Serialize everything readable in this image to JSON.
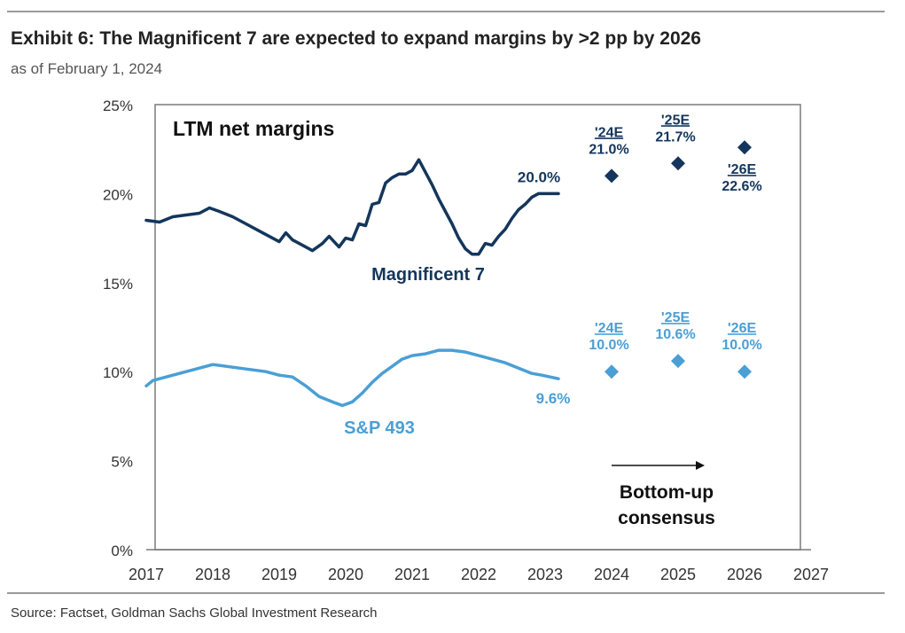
{
  "title": "Exhibit 6: The Magnificent 7 are expected to expand margins by >2 pp by 2026",
  "subtitle": "as of February 1, 2024",
  "source": "Source: Factset, Goldman Sachs Global Investment Research",
  "colors": {
    "mag7": "#14365c",
    "sp493": "#4a9fd5",
    "frame": "#7a7a7a",
    "text": "#333333"
  },
  "chart_data": {
    "type": "line",
    "title": "LTM net margins",
    "xlim": [
      2017,
      2027
    ],
    "ylim": [
      0,
      25
    ],
    "x_ticks": [
      "2017",
      "2018",
      "2019",
      "2020",
      "2021",
      "2022",
      "2023",
      "2024",
      "2025",
      "2026",
      "2027"
    ],
    "y_ticks": [
      "0%",
      "5%",
      "10%",
      "15%",
      "20%",
      "25%"
    ],
    "grid": false,
    "series": [
      {
        "name": "Magnificent 7",
        "x": [
          2017.0,
          2017.2,
          2017.4,
          2017.6,
          2017.8,
          2017.95,
          2018.1,
          2018.3,
          2018.5,
          2018.7,
          2018.9,
          2019.0,
          2019.1,
          2019.2,
          2019.35,
          2019.5,
          2019.65,
          2019.75,
          2019.9,
          2020.0,
          2020.1,
          2020.2,
          2020.3,
          2020.4,
          2020.5,
          2020.6,
          2020.7,
          2020.8,
          2020.9,
          2021.0,
          2021.1,
          2021.2,
          2021.3,
          2021.4,
          2021.5,
          2021.6,
          2021.7,
          2021.8,
          2021.9,
          2022.0,
          2022.1,
          2022.2,
          2022.3,
          2022.4,
          2022.5,
          2022.6,
          2022.7,
          2022.8,
          2022.9,
          2023.0,
          2023.1,
          2023.2
        ],
        "y": [
          18.5,
          18.4,
          18.7,
          18.8,
          18.9,
          19.2,
          19.0,
          18.7,
          18.3,
          17.9,
          17.5,
          17.3,
          17.8,
          17.4,
          17.1,
          16.8,
          17.2,
          17.6,
          17.0,
          17.5,
          17.4,
          18.3,
          18.2,
          19.4,
          19.5,
          20.6,
          20.9,
          21.1,
          21.1,
          21.3,
          21.9,
          21.2,
          20.5,
          19.7,
          19.0,
          18.3,
          17.5,
          16.9,
          16.6,
          16.6,
          17.2,
          17.1,
          17.6,
          18.0,
          18.6,
          19.1,
          19.4,
          19.8,
          20.0,
          20.0,
          20.0,
          20.0
        ],
        "label": "Magnificent 7",
        "end_label": "20.0%",
        "estimates": [
          {
            "x": 2024,
            "y": 21.0,
            "year_label": "'24E",
            "value_label": "21.0%"
          },
          {
            "x": 2025,
            "y": 21.7,
            "year_label": "'25E",
            "value_label": "21.7%"
          },
          {
            "x": 2026,
            "y": 22.6,
            "year_label": "'26E",
            "value_label": "22.6%"
          }
        ]
      },
      {
        "name": "S&P 493",
        "x": [
          2017.0,
          2017.1,
          2017.3,
          2017.5,
          2017.7,
          2017.9,
          2018.0,
          2018.2,
          2018.4,
          2018.6,
          2018.8,
          2019.0,
          2019.2,
          2019.4,
          2019.6,
          2019.8,
          2019.95,
          2020.1,
          2020.25,
          2020.4,
          2020.55,
          2020.7,
          2020.85,
          2021.0,
          2021.2,
          2021.4,
          2021.6,
          2021.8,
          2022.0,
          2022.2,
          2022.4,
          2022.6,
          2022.8,
          2022.95,
          2023.2
        ],
        "y": [
          9.2,
          9.5,
          9.7,
          9.9,
          10.1,
          10.3,
          10.4,
          10.3,
          10.2,
          10.1,
          10.0,
          9.8,
          9.7,
          9.2,
          8.6,
          8.3,
          8.1,
          8.3,
          8.8,
          9.4,
          9.9,
          10.3,
          10.7,
          10.9,
          11.0,
          11.2,
          11.2,
          11.1,
          10.9,
          10.7,
          10.5,
          10.2,
          9.9,
          9.8,
          9.6
        ],
        "label": "S&P 493",
        "end_label": "9.6%",
        "estimates": [
          {
            "x": 2024,
            "y": 10.0,
            "year_label": "'24E",
            "value_label": "10.0%"
          },
          {
            "x": 2025,
            "y": 10.6,
            "year_label": "'25E",
            "value_label": "10.6%"
          },
          {
            "x": 2026,
            "y": 10.0,
            "year_label": "'26E",
            "value_label": "10.0%"
          }
        ]
      }
    ],
    "annotation": {
      "text_line1": "Bottom-up",
      "text_line2": "consensus",
      "arrow_from_year": 2024,
      "arrow_to_year": 2025.4
    }
  }
}
